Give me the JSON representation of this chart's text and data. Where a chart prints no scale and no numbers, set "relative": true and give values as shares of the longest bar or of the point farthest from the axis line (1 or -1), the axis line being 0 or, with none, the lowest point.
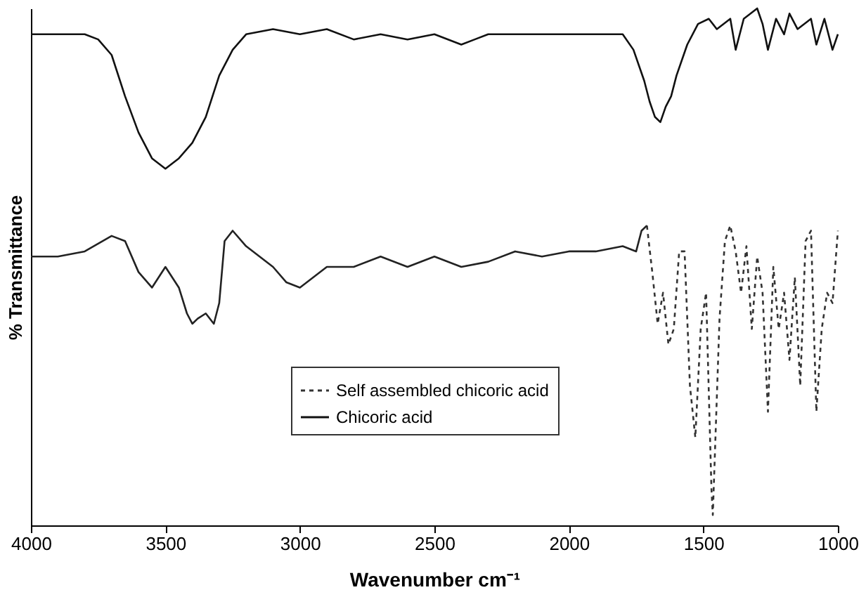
{
  "chart_data": {
    "type": "line",
    "relative": true,
    "xlabel": "Wavenumber cm⁻¹",
    "ylabel": "% Transmittance",
    "xlim": [
      4000,
      1000
    ],
    "xticks": [
      4000,
      3500,
      3000,
      2500,
      2000,
      1500,
      1000
    ],
    "tick_labels": "x",
    "legend": "bottom",
    "grid": false,
    "series": [
      {
        "name": "Self assembled chicoric acid",
        "color": "#333333",
        "line_style": "dashed",
        "x": [
          1710,
          1690,
          1670,
          1650,
          1630,
          1610,
          1590,
          1570,
          1550,
          1530,
          1510,
          1490,
          1470,
          1465,
          1440,
          1420,
          1400,
          1380,
          1360,
          1340,
          1320,
          1300,
          1280,
          1260,
          1240,
          1220,
          1200,
          1180,
          1160,
          1140,
          1120,
          1100,
          1080,
          1060,
          1040,
          1020,
          1000
        ],
        "values": [
          0.58,
          0.49,
          0.39,
          0.45,
          0.35,
          0.38,
          0.53,
          0.53,
          0.27,
          0.17,
          0.38,
          0.45,
          0.07,
          0.02,
          0.4,
          0.55,
          0.58,
          0.53,
          0.45,
          0.54,
          0.38,
          0.52,
          0.45,
          0.22,
          0.5,
          0.38,
          0.45,
          0.32,
          0.48,
          0.27,
          0.55,
          0.57,
          0.22,
          0.38,
          0.45,
          0.43,
          0.57
        ]
      },
      {
        "color": "#222222",
        "line_style": "solid",
        "x": [
          4000,
          3900,
          3800,
          3700,
          3650,
          3600,
          3550,
          3500,
          3450,
          3420,
          3400,
          3380,
          3350,
          3320,
          3300,
          3280,
          3250,
          3200,
          3100,
          3050,
          3000,
          2950,
          2900,
          2800,
          2700,
          2600,
          2500,
          2400,
          2300,
          2200,
          2100,
          2000,
          1900,
          1800,
          1750,
          1730,
          1710
        ],
        "values": [
          0.52,
          0.52,
          0.53,
          0.56,
          0.55,
          0.49,
          0.46,
          0.5,
          0.46,
          0.41,
          0.39,
          0.4,
          0.41,
          0.39,
          0.43,
          0.55,
          0.57,
          0.54,
          0.5,
          0.47,
          0.46,
          0.48,
          0.5,
          0.5,
          0.52,
          0.5,
          0.52,
          0.5,
          0.51,
          0.53,
          0.52,
          0.53,
          0.53,
          0.54,
          0.53,
          0.57,
          0.58
        ]
      },
      {
        "name": "Chicoric acid",
        "color": "#111111",
        "line_style": "solid",
        "x": [
          4000,
          3900,
          3800,
          3750,
          3700,
          3650,
          3600,
          3550,
          3500,
          3450,
          3400,
          3350,
          3300,
          3250,
          3200,
          3100,
          3000,
          2900,
          2800,
          2700,
          2600,
          2500,
          2400,
          2350,
          2300,
          2200,
          2100,
          2000,
          1900,
          1800,
          1760,
          1720,
          1700,
          1680,
          1660,
          1640,
          1620,
          1600,
          1560,
          1520,
          1480,
          1450,
          1400,
          1380,
          1350,
          1300,
          1280,
          1260,
          1230,
          1200,
          1180,
          1150,
          1100,
          1080,
          1050,
          1020,
          1000
        ],
        "values": [
          0.95,
          0.95,
          0.95,
          0.94,
          0.91,
          0.83,
          0.76,
          0.71,
          0.69,
          0.71,
          0.74,
          0.79,
          0.87,
          0.92,
          0.95,
          0.96,
          0.95,
          0.96,
          0.94,
          0.95,
          0.94,
          0.95,
          0.93,
          0.94,
          0.95,
          0.95,
          0.95,
          0.95,
          0.95,
          0.95,
          0.92,
          0.86,
          0.82,
          0.79,
          0.78,
          0.81,
          0.83,
          0.87,
          0.93,
          0.97,
          0.98,
          0.96,
          0.98,
          0.92,
          0.98,
          1.0,
          0.97,
          0.92,
          0.98,
          0.95,
          0.99,
          0.96,
          0.98,
          0.93,
          0.98,
          0.92,
          0.95
        ]
      }
    ]
  }
}
